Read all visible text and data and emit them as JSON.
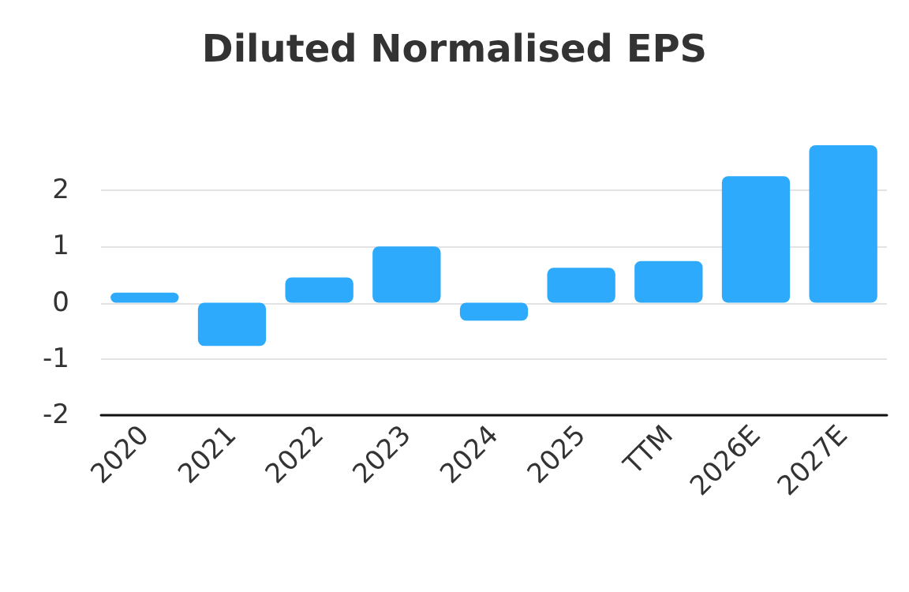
{
  "chart_data": {
    "type": "bar",
    "title": "Diluted Normalised EPS",
    "categories": [
      "2020",
      "2021",
      "2022",
      "2023",
      "2024",
      "2025",
      "TTM",
      "2026E",
      "2027E"
    ],
    "values": [
      0.18,
      -0.77,
      0.45,
      1.0,
      -0.32,
      0.62,
      0.74,
      2.25,
      2.8
    ],
    "color": "#2eaafc",
    "ylim": [
      -2,
      2.8
    ],
    "yticks": [
      -2,
      -1,
      0,
      1,
      2
    ],
    "grid": "y"
  }
}
